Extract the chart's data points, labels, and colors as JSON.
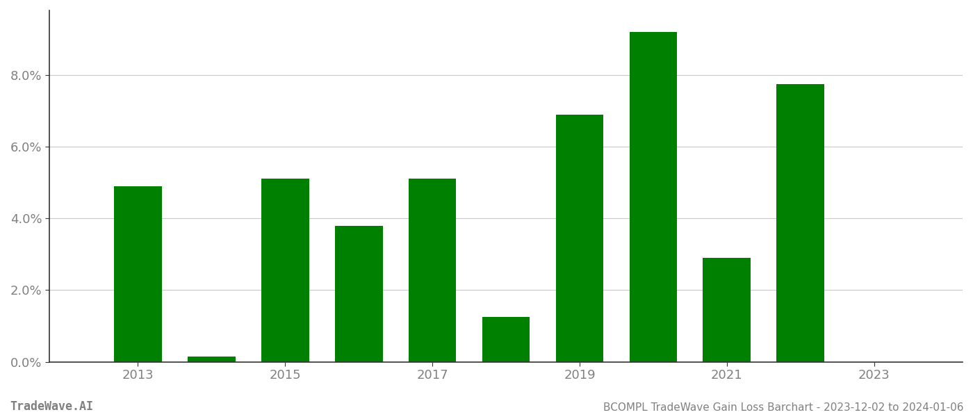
{
  "years": [
    2013,
    2014,
    2015,
    2016,
    2017,
    2018,
    2019,
    2020,
    2021,
    2022,
    2023
  ],
  "values": [
    0.049,
    0.0015,
    0.051,
    0.038,
    0.051,
    0.0125,
    0.069,
    0.092,
    0.029,
    0.0775,
    0.0
  ],
  "bar_color": "#008000",
  "background_color": "#ffffff",
  "grid_color": "#c8c8c8",
  "axis_label_color": "#808080",
  "spine_color": "#333333",
  "title_text": "BCOMPL TradeWave Gain Loss Barchart - 2023-12-02 to 2024-01-06",
  "watermark_text": "TradeWave.AI",
  "ylim": [
    0,
    0.098
  ],
  "ytick_values": [
    0.0,
    0.02,
    0.04,
    0.06,
    0.08
  ],
  "ytick_labels": [
    "0.0%",
    "2.0%",
    "4.0%",
    "6.0%",
    "8.0%"
  ],
  "xtick_values": [
    2013,
    2015,
    2017,
    2019,
    2021,
    2023
  ],
  "xlim": [
    2011.8,
    2024.2
  ],
  "bar_width": 0.65,
  "figsize": [
    14.0,
    6.0
  ],
  "dpi": 100,
  "tick_fontsize": 13,
  "footer_fontsize_watermark": 12,
  "footer_fontsize_title": 11
}
